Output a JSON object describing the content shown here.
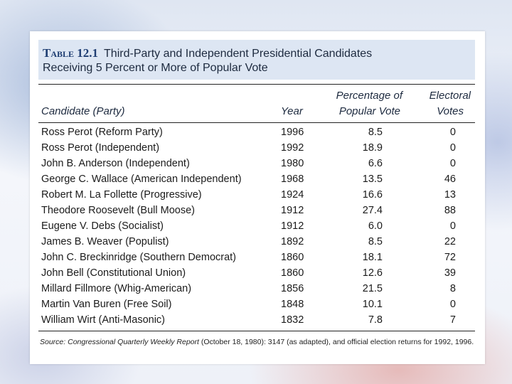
{
  "table": {
    "label": "Table 12.1",
    "title_line1": "Third-Party and Independent Presidential Candidates",
    "title_line2": "Receiving 5 Percent or More of Popular Vote",
    "headers": {
      "candidate": "Candidate (Party)",
      "year": "Year",
      "pct_line1": "Percentage of",
      "pct_line2": "Popular Vote",
      "ev_line1": "Electoral",
      "ev_line2": "Votes"
    },
    "rows": [
      {
        "candidate": "Ross Perot (Reform Party)",
        "year": "1996",
        "pct": "8.5",
        "ev": "0"
      },
      {
        "candidate": "Ross Perot (Independent)",
        "year": "1992",
        "pct": "18.9",
        "ev": "0"
      },
      {
        "candidate": "John B. Anderson (Independent)",
        "year": "1980",
        "pct": "6.6",
        "ev": "0"
      },
      {
        "candidate": "George C. Wallace (American Independent)",
        "year": "1968",
        "pct": "13.5",
        "ev": "46"
      },
      {
        "candidate": "Robert M. La Follette (Progressive)",
        "year": "1924",
        "pct": "16.6",
        "ev": "13"
      },
      {
        "candidate": "Theodore Roosevelt (Bull Moose)",
        "year": "1912",
        "pct": "27.4",
        "ev": "88"
      },
      {
        "candidate": "Eugene V. Debs (Socialist)",
        "year": "1912",
        "pct": "6.0",
        "ev": "0"
      },
      {
        "candidate": "James B. Weaver (Populist)",
        "year": "1892",
        "pct": "8.5",
        "ev": "22"
      },
      {
        "candidate": "John C. Breckinridge (Southern Democrat)",
        "year": "1860",
        "pct": "18.1",
        "ev": "72"
      },
      {
        "candidate": "John Bell (Constitutional Union)",
        "year": "1860",
        "pct": "12.6",
        "ev": "39"
      },
      {
        "candidate": "Millard Fillmore (Whig-American)",
        "year": "1856",
        "pct": "21.5",
        "ev": "8"
      },
      {
        "candidate": "Martin Van Buren (Free Soil)",
        "year": "1848",
        "pct": "10.1",
        "ev": "0"
      },
      {
        "candidate": "William Wirt (Anti-Masonic)",
        "year": "1832",
        "pct": "7.8",
        "ev": "7"
      }
    ],
    "source": {
      "prefix": "Source:",
      "publication": "Congressional Quarterly Weekly Report",
      "rest": "(October 18, 1980): 3147 (as adapted), and official election returns for 1992, 1996."
    }
  },
  "colors": {
    "title_band": "#dde6f3",
    "table_label": "#1e3d72"
  }
}
